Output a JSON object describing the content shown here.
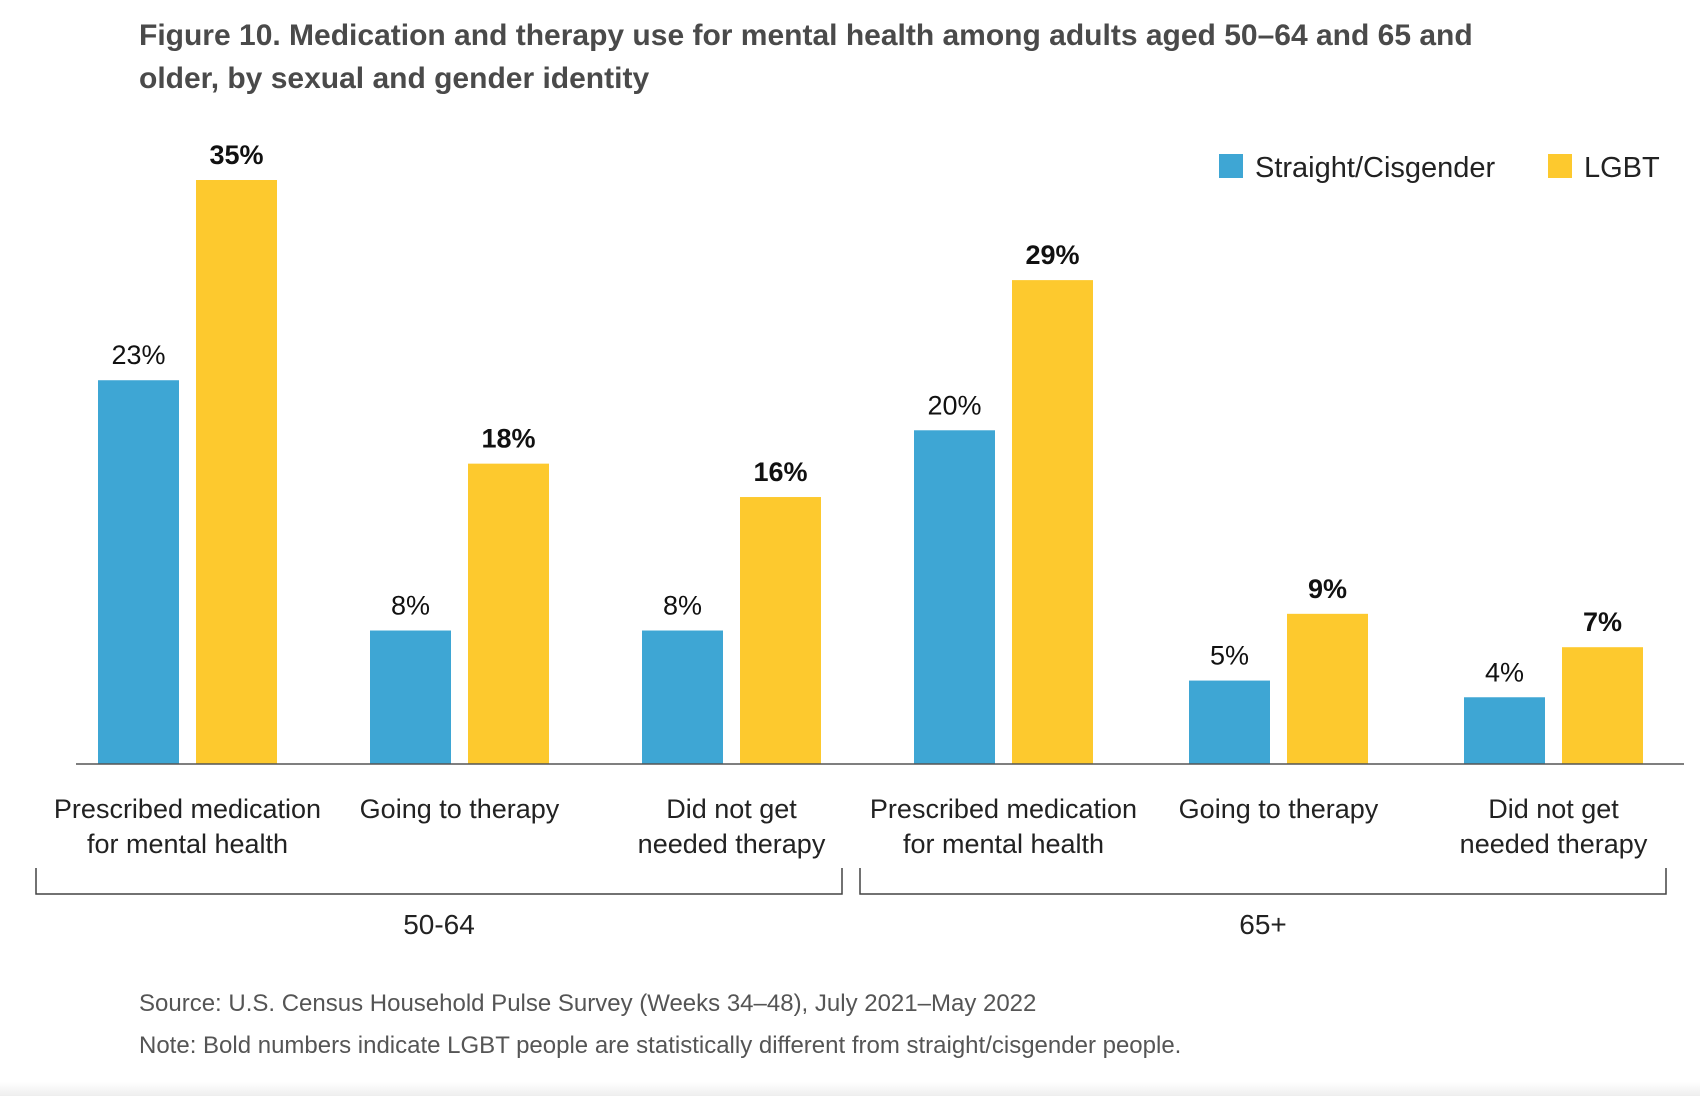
{
  "chart_data": {
    "type": "bar",
    "title": "Figure 10. Medication and therapy use for mental health among adults aged 50–64 and 65 and older, by sexual and gender identity",
    "groups": [
      {
        "name": "50-64",
        "categories": [
          [
            "Prescribed medication",
            "for mental health"
          ],
          [
            "Going to therapy"
          ],
          [
            "Did not get",
            "needed therapy"
          ]
        ]
      },
      {
        "name": "65+",
        "categories": [
          [
            "Prescribed medication",
            "for mental health"
          ],
          [
            "Going to therapy"
          ],
          [
            "Did not get",
            "needed therapy"
          ]
        ]
      }
    ],
    "series": [
      {
        "name": "Straight/Cisgender",
        "color": "#3ea6d4",
        "values": [
          23,
          8,
          8,
          20,
          5,
          4
        ],
        "labels": [
          "23%",
          "8%",
          "8%",
          "20%",
          "5%",
          "4%"
        ],
        "bold": false
      },
      {
        "name": "LGBT",
        "color": "#fdc92e",
        "values": [
          35,
          18,
          16,
          29,
          9,
          7
        ],
        "labels": [
          "35%",
          "18%",
          "16%",
          "29%",
          "9%",
          "7%"
        ],
        "bold": true
      }
    ],
    "ylim": [
      0,
      35
    ],
    "grid": false,
    "legend": "top-right",
    "source": "Source: U.S. Census Household Pulse Survey (Weeks 34–48), July 2021–May 2022",
    "note": "Note: Bold numbers indicate LGBT people are statistically different from straight/cisgender people."
  }
}
